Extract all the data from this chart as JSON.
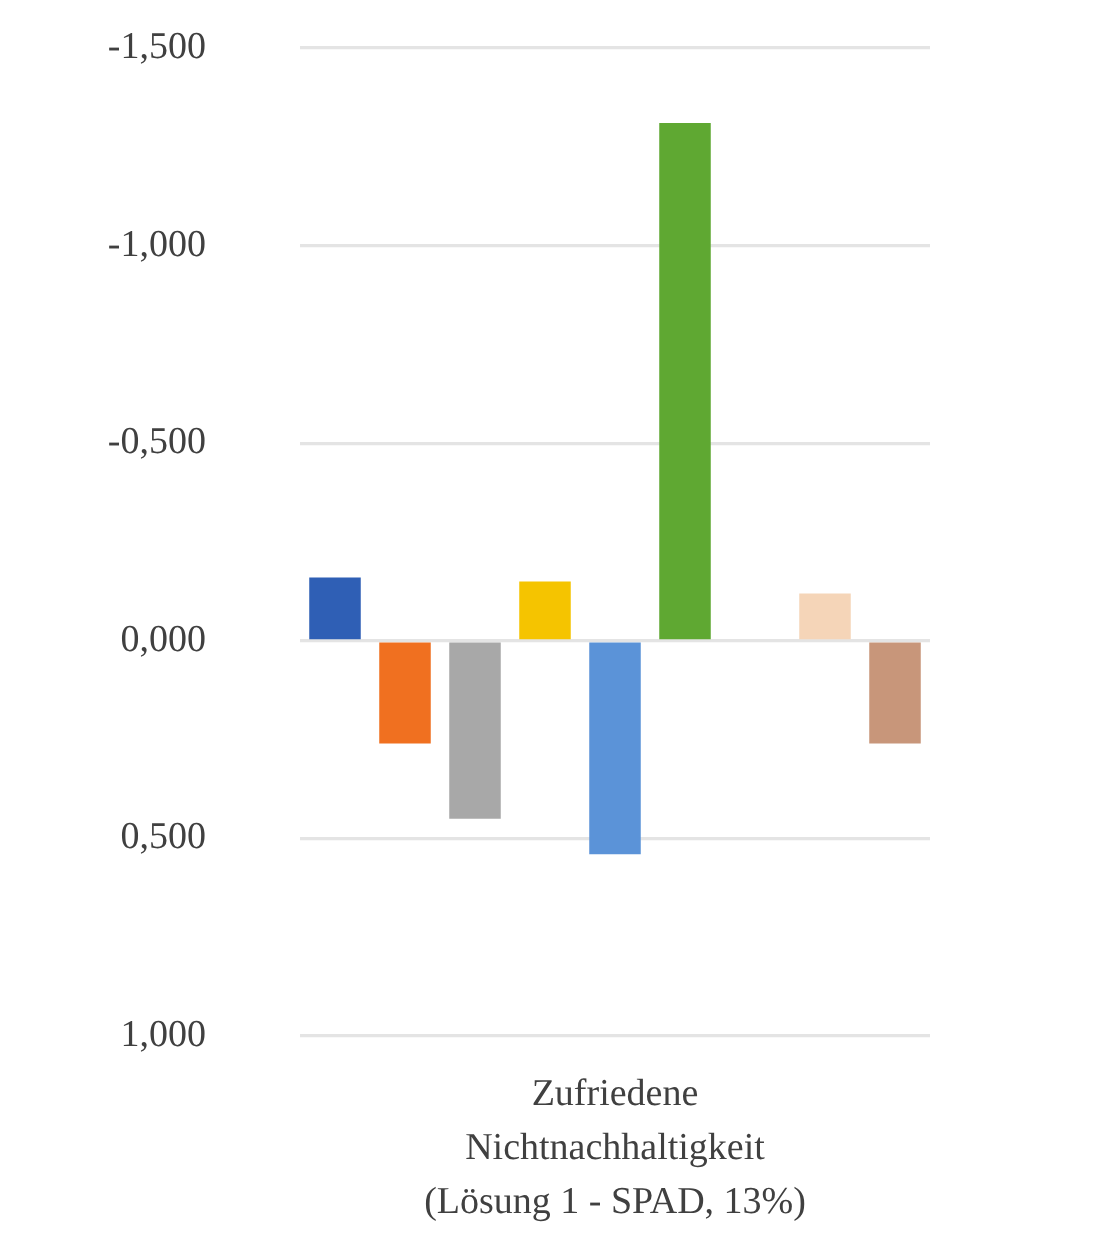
{
  "chart_data": {
    "type": "bar",
    "xlabel": "Zufriedene Nichtnachhaltigkeit (Lösung 1 - SPAD, 13%)",
    "categories": [
      null,
      null,
      null,
      null,
      null,
      null,
      null,
      null,
      null
    ],
    "values": [
      -0.16,
      0.26,
      0.45,
      -0.15,
      0.54,
      -1.31,
      null,
      -0.12,
      0.26
    ],
    "colors": [
      "#2f5fb5",
      "#f07020",
      "#a8a8a8",
      "#f5c400",
      "#5b93d8",
      "#5fa832",
      null,
      "#f5d5b8",
      "#c8967a"
    ],
    "ylim": [
      1,
      -1.5
    ],
    "yticks": [
      {
        "value": -1.5,
        "label": "-1,500"
      },
      {
        "value": -1,
        "label": "-1,000"
      },
      {
        "value": -0.5,
        "label": "-0,500"
      },
      {
        "value": 0,
        "label": "0,000"
      },
      {
        "value": 0.5,
        "label": "0,500"
      },
      {
        "value": 1,
        "label": "1,000"
      }
    ],
    "grid": "y"
  }
}
